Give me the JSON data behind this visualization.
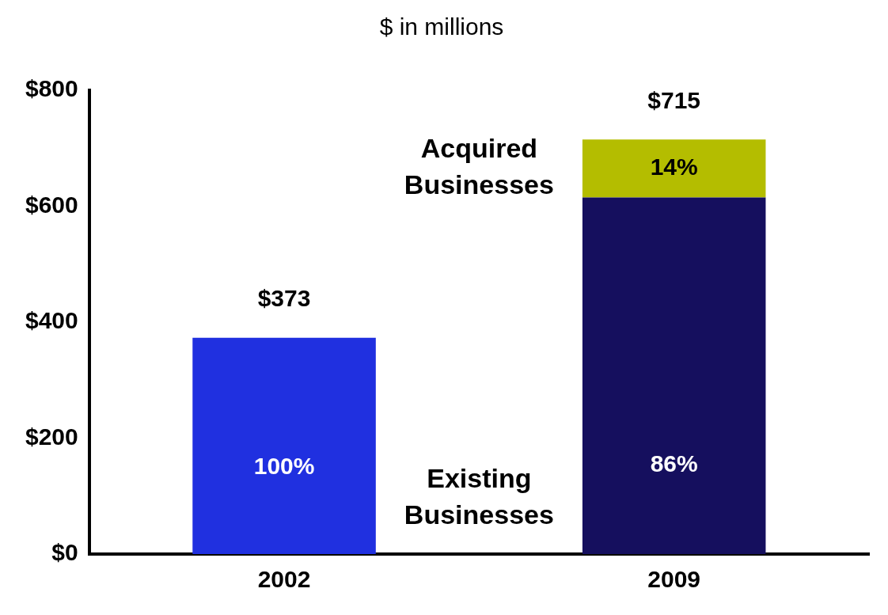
{
  "chart_data": {
    "type": "bar",
    "title": "$ in millions",
    "categories": [
      "2002",
      "2009"
    ],
    "stacked": true,
    "series": [
      {
        "name": "Existing Businesses",
        "colors": [
          "#2030e0",
          "#150f5e"
        ],
        "values": [
          373,
          615
        ]
      },
      {
        "name": "Acquired Businesses",
        "color": "#b4bd00",
        "values": [
          null,
          100
        ]
      }
    ],
    "annotations": [
      "100%",
      "86%",
      "14%"
    ],
    "totals": [
      "$373",
      "$715"
    ],
    "ylim": [
      0,
      800
    ],
    "yticks": [
      {
        "value": 0,
        "label": "$0"
      },
      {
        "value": 200,
        "label": "$200"
      },
      {
        "value": 400,
        "label": "$400"
      },
      {
        "value": 600,
        "label": "$600"
      },
      {
        "value": 800,
        "label": "$800"
      }
    ],
    "grid": false,
    "legend": false
  }
}
